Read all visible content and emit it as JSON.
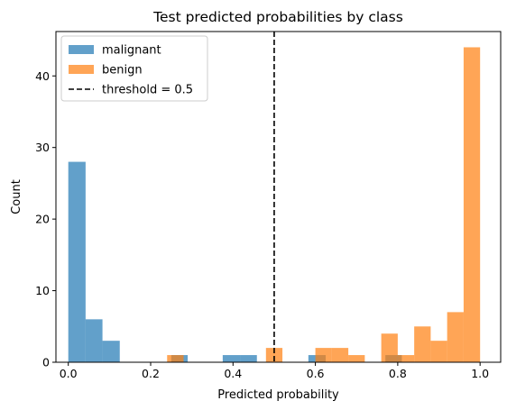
{
  "chart_data": {
    "type": "histogram",
    "title": "Test predicted probabilities by class",
    "xlabel": "Predicted probability",
    "ylabel": "Count",
    "xlim": [
      -0.03,
      1.05
    ],
    "ylim": [
      0,
      46.2
    ],
    "xticks": [
      0.0,
      0.2,
      0.4,
      0.6,
      0.8,
      1.0
    ],
    "xtick_labels": [
      "0.0",
      "0.2",
      "0.4",
      "0.6",
      "0.8",
      "1.0"
    ],
    "yticks": [
      0,
      10,
      20,
      30,
      40
    ],
    "ytick_labels": [
      "0",
      "10",
      "20",
      "30",
      "40"
    ],
    "grid": false,
    "legend_position": "top-left",
    "series": [
      {
        "name": "malignant",
        "color": "#1f77b4",
        "bins": [
          {
            "start": 0.0,
            "end": 0.042,
            "count": 28
          },
          {
            "start": 0.042,
            "end": 0.083,
            "count": 6
          },
          {
            "start": 0.083,
            "end": 0.125,
            "count": 3
          },
          {
            "start": 0.25,
            "end": 0.29,
            "count": 1
          },
          {
            "start": 0.375,
            "end": 0.417,
            "count": 1
          },
          {
            "start": 0.417,
            "end": 0.458,
            "count": 1
          },
          {
            "start": 0.583,
            "end": 0.625,
            "count": 1
          },
          {
            "start": 0.77,
            "end": 0.81,
            "count": 1
          }
        ]
      },
      {
        "name": "benign",
        "color": "#ff7f0e",
        "bins": [
          {
            "start": 0.24,
            "end": 0.28,
            "count": 1
          },
          {
            "start": 0.48,
            "end": 0.52,
            "count": 2
          },
          {
            "start": 0.6,
            "end": 0.64,
            "count": 2
          },
          {
            "start": 0.64,
            "end": 0.68,
            "count": 2
          },
          {
            "start": 0.68,
            "end": 0.72,
            "count": 1
          },
          {
            "start": 0.76,
            "end": 0.8,
            "count": 4
          },
          {
            "start": 0.8,
            "end": 0.84,
            "count": 1
          },
          {
            "start": 0.84,
            "end": 0.88,
            "count": 5
          },
          {
            "start": 0.88,
            "end": 0.92,
            "count": 3
          },
          {
            "start": 0.92,
            "end": 0.96,
            "count": 7
          },
          {
            "start": 0.96,
            "end": 1.0,
            "count": 44
          }
        ]
      }
    ],
    "threshold": {
      "value": 0.5,
      "label": "threshold = 0.5",
      "color": "#000000",
      "style": "dashed"
    }
  }
}
